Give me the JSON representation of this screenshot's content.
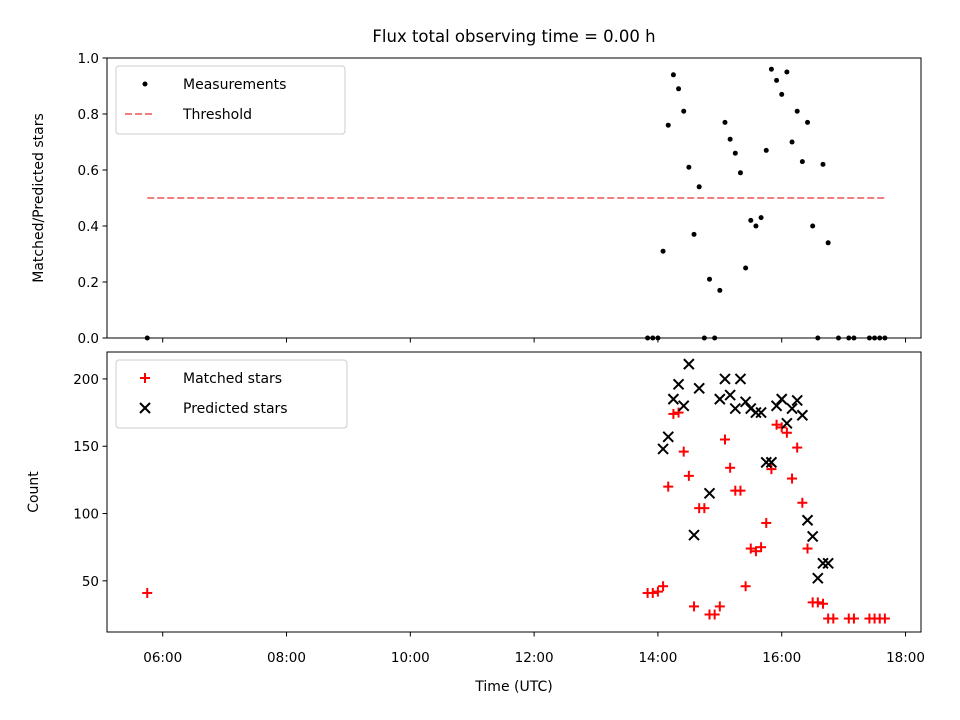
{
  "chart_data": {
    "type": "scatter",
    "title": "Flux total observing time = 0.00 h",
    "xlabel": "Time (UTC)",
    "x_ticks": [
      "06:00",
      "08:00",
      "10:00",
      "12:00",
      "14:00",
      "16:00",
      "18:00"
    ],
    "x_range_hours": [
      5.1,
      18.25
    ],
    "panels": [
      {
        "ylabel": "Matched/Predicted stars",
        "ylim": [
          0,
          1
        ],
        "y_ticks": [
          "0.0",
          "0.2",
          "0.4",
          "0.6",
          "0.8",
          "1.0"
        ],
        "legend_position": "upper left",
        "series": [
          {
            "name": "Measurements",
            "marker": "dot",
            "color": "#000000",
            "x": [
              "05:45",
              "13:50",
              "13:55",
              "14:00",
              "14:05",
              "14:10",
              "14:15",
              "14:20",
              "14:25",
              "14:30",
              "14:35",
              "14:40",
              "14:45",
              "14:50",
              "14:55",
              "15:00",
              "15:05",
              "15:10",
              "15:15",
              "15:20",
              "15:25",
              "15:30",
              "15:35",
              "15:40",
              "15:45",
              "15:50",
              "15:55",
              "16:00",
              "16:05",
              "16:10",
              "16:15",
              "16:20",
              "16:25",
              "16:30",
              "16:35",
              "16:40",
              "16:45",
              "16:55",
              "17:05",
              "17:10",
              "17:25",
              "17:30",
              "17:35",
              "17:40"
            ],
            "y": [
              0.0,
              0.0,
              0.0,
              0.0,
              0.31,
              0.76,
              0.94,
              0.89,
              0.81,
              0.61,
              0.37,
              0.54,
              0.0,
              0.21,
              0.0,
              0.17,
              0.77,
              0.71,
              0.66,
              0.59,
              0.25,
              0.42,
              0.4,
              0.43,
              0.67,
              0.96,
              0.92,
              0.87,
              0.95,
              0.7,
              0.81,
              0.63,
              0.77,
              0.4,
              0.0,
              0.62,
              0.34,
              0.0,
              0.0,
              0.0,
              0.0,
              0.0,
              0.0,
              0.0
            ]
          },
          {
            "name": "Threshold",
            "marker": "dashed-line",
            "color": "#f08080",
            "x": [
              "05:45",
              "17:40"
            ],
            "y": [
              0.5,
              0.5
            ]
          }
        ]
      },
      {
        "ylabel": "Count",
        "ylim": [
          12,
          220
        ],
        "y_ticks": [
          "50",
          "100",
          "150",
          "200"
        ],
        "legend_position": "upper left",
        "series": [
          {
            "name": "Matched stars",
            "marker": "plus",
            "color": "#ff0000",
            "x": [
              "05:45",
              "13:50",
              "13:55",
              "14:00",
              "14:05",
              "14:10",
              "14:15",
              "14:20",
              "14:25",
              "14:30",
              "14:35",
              "14:40",
              "14:45",
              "14:50",
              "14:55",
              "15:00",
              "15:05",
              "15:10",
              "15:15",
              "15:20",
              "15:25",
              "15:30",
              "15:35",
              "15:40",
              "15:45",
              "15:50",
              "15:55",
              "16:00",
              "16:05",
              "16:10",
              "16:15",
              "16:20",
              "16:25",
              "16:30",
              "16:35",
              "16:40",
              "16:45",
              "16:50",
              "17:05",
              "17:10",
              "17:25",
              "17:30",
              "17:35",
              "17:40"
            ],
            "y": [
              41,
              41,
              41,
              42,
              46,
              120,
              174,
              175,
              146,
              128,
              31,
              104,
              104,
              25,
              25,
              31,
              155,
              134,
              117,
              117,
              46,
              74,
              72,
              75,
              93,
              133,
              166,
              164,
              160,
              126,
              149,
              108,
              74,
              34,
              34,
              33,
              22,
              22,
              22,
              22,
              22,
              22,
              22,
              22
            ]
          },
          {
            "name": "Predicted stars",
            "marker": "x",
            "color": "#000000",
            "x": [
              "14:05",
              "14:10",
              "14:15",
              "14:20",
              "14:25",
              "14:30",
              "14:35",
              "14:40",
              "14:50",
              "15:00",
              "15:05",
              "15:10",
              "15:15",
              "15:20",
              "15:25",
              "15:30",
              "15:35",
              "15:40",
              "15:45",
              "15:50",
              "15:55",
              "16:00",
              "16:05",
              "16:10",
              "16:15",
              "16:20",
              "16:25",
              "16:30",
              "16:35",
              "16:40",
              "16:45"
            ],
            "y": [
              148,
              157,
              185,
              196,
              180,
              211,
              84,
              193,
              115,
              185,
              200,
              188,
              178,
              200,
              183,
              178,
              175,
              175,
              138,
              138,
              180,
              185,
              167,
              178,
              184,
              173,
              95,
              83,
              52,
              63,
              63
            ]
          }
        ]
      }
    ]
  }
}
